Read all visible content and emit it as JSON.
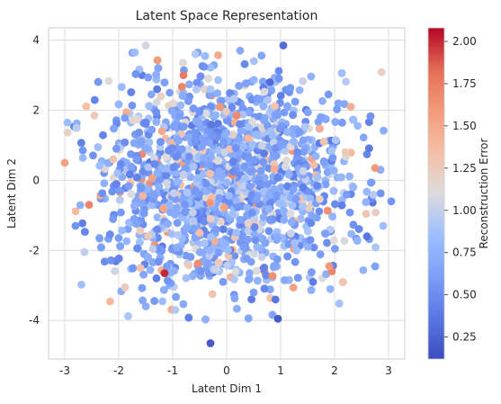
{
  "chart_data": {
    "type": "scatter",
    "title": "Latent Space Representation",
    "xlabel": "Latent Dim 1",
    "ylabel": "Latent Dim 2",
    "xlim": [
      -3.3,
      3.3
    ],
    "ylim": [
      -5.1,
      4.35
    ],
    "xticks": [
      -3,
      -2,
      -1,
      0,
      1,
      2,
      3
    ],
    "yticks": [
      -4,
      -2,
      0,
      2,
      4
    ],
    "grid": true,
    "colorbar": {
      "label": "Reconstruction Error",
      "colormap": "coolwarm",
      "range": [
        0.12,
        2.08
      ],
      "ticks": [
        0.25,
        0.5,
        0.75,
        1.0,
        1.25,
        1.5,
        1.75,
        2.0
      ],
      "tick_labels": [
        "0.25",
        "0.50",
        "0.75",
        "1.00",
        "1.25",
        "1.50",
        "1.75",
        "2.00"
      ]
    },
    "points": [
      {
        "x": -0.3,
        "y": -4.65,
        "c": 0.2
      },
      {
        "x": 0.95,
        "y": -3.95,
        "c": 0.2
      },
      {
        "x": 1.05,
        "y": 3.85,
        "c": 0.3
      },
      {
        "x": -1.5,
        "y": 3.85,
        "c": 1.05
      },
      {
        "x": 0.25,
        "y": 3.7,
        "c": 0.7
      },
      {
        "x": -1.7,
        "y": 3.65,
        "c": 0.85
      },
      {
        "x": -3.0,
        "y": 0.5,
        "c": 1.55
      },
      {
        "x": 3.05,
        "y": -0.6,
        "c": 0.55
      },
      {
        "x": -2.95,
        "y": 1.65,
        "c": 0.85
      },
      {
        "x": 2.9,
        "y": -1.3,
        "c": 0.85
      },
      {
        "x": -2.45,
        "y": 1.85,
        "c": 1.25
      },
      {
        "x": 2.75,
        "y": 0.35,
        "c": 1.6
      },
      {
        "x": -1.15,
        "y": -2.65,
        "c": 2.0
      },
      {
        "x": -2.55,
        "y": -0.7,
        "c": 1.7
      },
      {
        "x": -0.8,
        "y": 3.0,
        "c": 1.75
      },
      {
        "x": 1.95,
        "y": -2.6,
        "c": 1.7
      },
      {
        "x": 2.3,
        "y": 2.1,
        "c": 1.45
      },
      {
        "x": 1.8,
        "y": 1.1,
        "c": 1.3
      },
      {
        "x": -0.95,
        "y": -3.7,
        "c": 0.95
      },
      {
        "x": 1.6,
        "y": -2.9,
        "c": 0.4
      },
      {
        "x": -2.8,
        "y": -1.3,
        "c": 0.55
      },
      {
        "x": 2.6,
        "y": -1.6,
        "c": 0.35
      },
      {
        "x": -1.6,
        "y": -2.5,
        "c": 1.3
      },
      {
        "x": 0.8,
        "y": 2.8,
        "c": 0.3
      },
      {
        "x": 0.5,
        "y": -3.2,
        "c": 0.6
      },
      {
        "x": -0.3,
        "y": 2.6,
        "c": 0.9
      },
      {
        "x": 1.9,
        "y": -2.45,
        "c": 1.6
      },
      {
        "x": -1.2,
        "y": 1.4,
        "c": 1.5
      },
      {
        "x": 0.4,
        "y": 1.2,
        "c": 1.4
      },
      {
        "x": -0.5,
        "y": -1.5,
        "c": 1.35
      },
      {
        "x": 2.2,
        "y": 0.8,
        "c": 1.25
      },
      {
        "x": -2.1,
        "y": 0.6,
        "c": 1.3
      }
    ]
  }
}
